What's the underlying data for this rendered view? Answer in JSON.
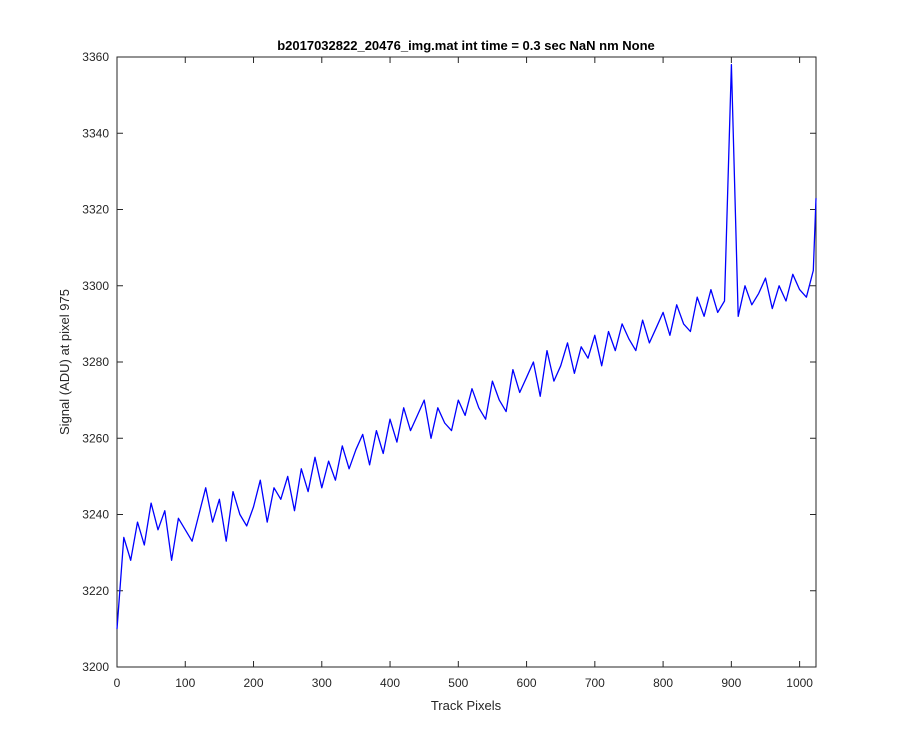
{
  "chart_data": {
    "type": "line",
    "title": "b2017032822_20476_img.mat int time = 0.3 sec  NaN nm None",
    "xlabel": "Track Pixels",
    "ylabel": "Signal (ADU) at pixel 975",
    "xlim": [
      0,
      1024
    ],
    "ylim": [
      3200,
      3360
    ],
    "xticks": [
      "0",
      "100",
      "200",
      "300",
      "400",
      "500",
      "600",
      "700",
      "800",
      "900",
      "1000"
    ],
    "yticks": [
      "3200",
      "3220",
      "3240",
      "3260",
      "3280",
      "3300",
      "3320",
      "3340",
      "3360"
    ],
    "grid": false,
    "line_color": "#0000ff",
    "series": [
      {
        "x": [
          0,
          10,
          20,
          30,
          40,
          50,
          60,
          70,
          80,
          90,
          100,
          110,
          120,
          130,
          140,
          150,
          160,
          170,
          180,
          190,
          200,
          210,
          220,
          230,
          240,
          250,
          260,
          270,
          280,
          290,
          300,
          310,
          320,
          330,
          340,
          350,
          360,
          370,
          380,
          390,
          400,
          410,
          420,
          430,
          440,
          450,
          460,
          470,
          480,
          490,
          500,
          510,
          520,
          530,
          540,
          550,
          560,
          570,
          580,
          590,
          600,
          610,
          620,
          630,
          640,
          650,
          660,
          670,
          680,
          690,
          700,
          710,
          720,
          730,
          740,
          750,
          760,
          770,
          780,
          790,
          800,
          810,
          820,
          830,
          840,
          850,
          860,
          870,
          880,
          890,
          900,
          910,
          920,
          930,
          940,
          950,
          960,
          970,
          980,
          990,
          1000,
          1010,
          1020,
          1024
        ],
        "values": [
          3210,
          3234,
          3228,
          3238,
          3232,
          3243,
          3236,
          3241,
          3228,
          3239,
          3236,
          3233,
          3240,
          3247,
          3238,
          3244,
          3233,
          3246,
          3240,
          3237,
          3242,
          3249,
          3238,
          3247,
          3244,
          3250,
          3241,
          3252,
          3246,
          3255,
          3247,
          3254,
          3249,
          3258,
          3252,
          3257,
          3261,
          3253,
          3262,
          3256,
          3265,
          3259,
          3268,
          3262,
          3266,
          3270,
          3260,
          3268,
          3264,
          3262,
          3270,
          3266,
          3273,
          3268,
          3265,
          3275,
          3270,
          3267,
          3278,
          3272,
          3276,
          3280,
          3271,
          3283,
          3275,
          3279,
          3285,
          3277,
          3284,
          3281,
          3287,
          3279,
          3288,
          3283,
          3290,
          3286,
          3283,
          3291,
          3285,
          3289,
          3293,
          3287,
          3295,
          3290,
          3288,
          3297,
          3292,
          3299,
          3293,
          3296,
          3358,
          3292,
          3300,
          3295,
          3298,
          3302,
          3294,
          3300,
          3296,
          3303,
          3299,
          3297,
          3304,
          3323
        ]
      }
    ]
  }
}
